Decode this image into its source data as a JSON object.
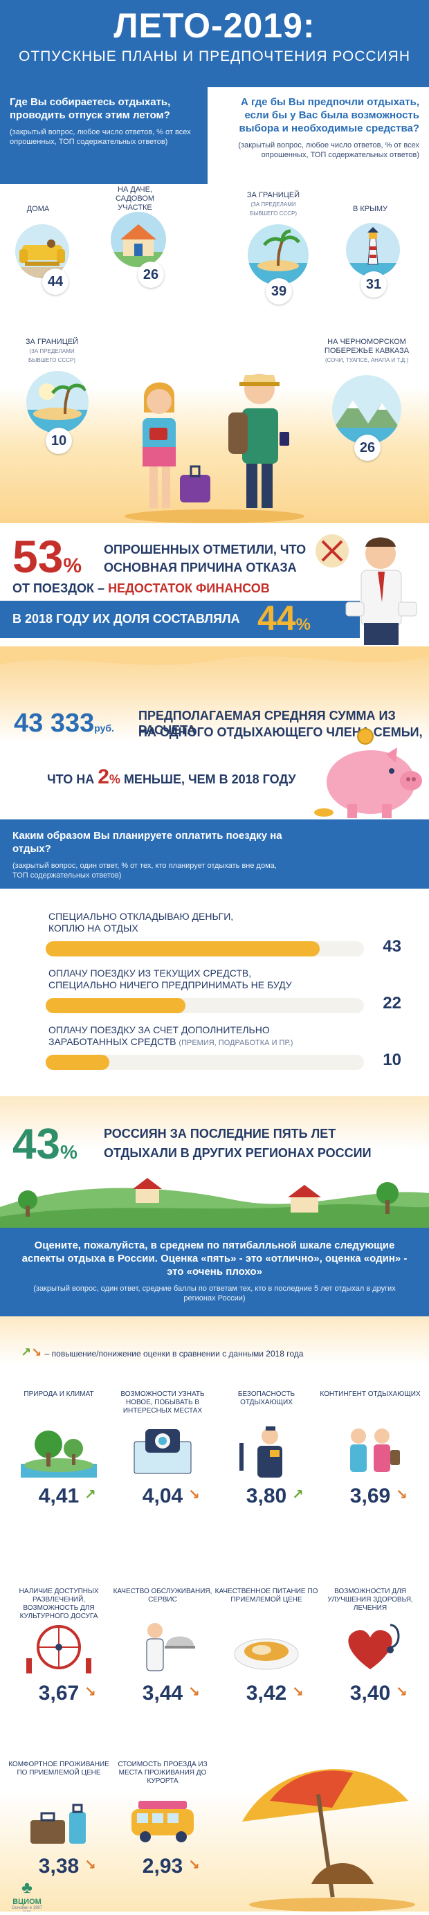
{
  "header": {
    "title": "ЛЕТО-2019:",
    "subtitle": "ОТПУСКНЫЕ ПЛАНЫ И ПРЕДПОЧТЕНИЯ РОССИЯН"
  },
  "q_plan": {
    "title": "Где Вы собираетесь отдыхать, проводить отпуск этим летом?",
    "note": "(закрытый вопрос, любое число ответов, % от всех опрошенных, ТОП содержательных ответов)"
  },
  "q_pref": {
    "title": "А где бы Вы предпочли отдыхать, если бы у Вас была возможность выбора и необходимые средства?",
    "note": "(закрытый вопрос, любое число ответов, % от всех опрошенных, ТОП содержательных ответов)"
  },
  "plan_items": [
    {
      "label": "ДОМА",
      "sub": "",
      "value": "44"
    },
    {
      "label": "НА ДАЧЕ, САДОВОМ УЧАСТКЕ",
      "sub": "",
      "value": "26"
    },
    {
      "label": "ЗА ГРАНИЦЕЙ",
      "sub": "(ЗА ПРЕДЕЛАМИ БЫВШЕГО СССР)",
      "value": "10"
    }
  ],
  "pref_items": [
    {
      "label": "ЗА ГРАНИЦЕЙ",
      "sub": "(ЗА ПРЕДЕЛАМИ БЫВШЕГО СССР)",
      "value": "39"
    },
    {
      "label": "В КРЫМУ",
      "sub": "",
      "value": "31"
    },
    {
      "label": "НА ЧЕРНОМОРСКОМ ПОБЕРЕЖЬЕ КАВКАЗА",
      "sub": "(СОЧИ, ТУАПСЕ, АНАПА И Т.Д.)",
      "value": "26"
    }
  ],
  "finance": {
    "pct": "53",
    "pct_sign": "%",
    "text1": "ОПРОШЕННЫХ ОТМЕТИЛИ, ЧТО",
    "text2": "ОСНОВНАЯ ПРИЧИНА ОТКАЗА",
    "text3a": "ОТ ПОЕЗДОК –",
    "text3b": "НЕДОСТАТОК ФИНАНСОВ",
    "text4": "В 2018 ГОДУ ИХ ДОЛЯ СОСТАВЛЯЛА",
    "pct2018": "44",
    "pct2018_sign": "%"
  },
  "money": {
    "amount": "43 333",
    "unit": "руб.",
    "text1": "ПРЕДПОЛАГАЕМАЯ СРЕДНЯЯ СУММА ИЗ РАСЧЕТА",
    "text2": "НА ОДНОГО ОТДЫХАЮЩЕГО ЧЛЕНА СЕМЬИ,",
    "text3a": "ЧТО НА",
    "pct": "2",
    "pct_sign": "%",
    "text3b": "МЕНЬШЕ, ЧЕМ В 2018 ГОДУ"
  },
  "q_pay": {
    "title": "Каким образом Вы планируете оплатить поездку на отдых?",
    "note": "(закрытый вопрос, один ответ, % от тех, кто планирует отдыхать вне дома, ТОП содержательных ответов)"
  },
  "pay_items": [
    {
      "label1": "СПЕЦИАЛЬНО ОТКЛАДЫВАЮ ДЕНЬГИ,",
      "label2": "КОПЛЮ НА ОТДЫХ",
      "label2_small": "",
      "value": 43
    },
    {
      "label1": "ОПЛАЧУ ПОЕЗДКУ ИЗ ТЕКУЩИХ СРЕДСТВ,",
      "label2": "СПЕЦИАЛЬНО НИЧЕГО ПРЕДПРИНИМАТЬ НЕ БУДУ",
      "label2_small": "",
      "value": 22
    },
    {
      "label1": "ОПЛАЧУ ПОЕЗДКУ ЗА СЧЕТ ДОПОЛНИТЕЛЬНО",
      "label2": "ЗАРАБОТАННЫХ СРЕДСТВ",
      "label2_small": "(ПРЕМИЯ, ПОДРАБОТКА И ПР.)",
      "value": 10
    }
  ],
  "regions": {
    "pct": "43",
    "pct_sign": "%",
    "text1": "РОССИЯН ЗА ПОСЛЕДНИЕ ПЯТЬ ЛЕТ",
    "text2": "ОТДЫХАЛИ В ДРУГИХ РЕГИОНАХ РОССИИ"
  },
  "q_rate": {
    "title": "Оцените, пожалуйста, в среднем по пятибалльной шкале следующие аспекты отдыха в России. Оценка «пять» - это «отлично», оценка «один» - это «очень плохо»",
    "note": "(закрытый вопрос, один ответ, средние баллы по ответам тех, кто в последние 5 лет отдыхал в других регионах России)"
  },
  "legend": {
    "text": "– повышение/понижение оценки в сравнении с данными 2018 года"
  },
  "ratings": [
    {
      "label": "ПРИРОДА И КЛИМАТ",
      "value": "4,41",
      "trend": "up"
    },
    {
      "label": "ВОЗМОЖНОСТИ УЗНАТЬ НОВОЕ, ПОБЫВАТЬ В ИНТЕРЕСНЫХ МЕСТАХ",
      "value": "4,04",
      "trend": "down"
    },
    {
      "label": "БЕЗОПАСНОСТЬ ОТДЫХАЮЩИХ",
      "value": "3,80",
      "trend": "up"
    },
    {
      "label": "КОНТИНГЕНТ ОТДЫХАЮЩИХ",
      "value": "3,69",
      "trend": "down"
    },
    {
      "label": "НАЛИЧИЕ ДОСТУПНЫХ РАЗВЛЕЧЕНИЙ, ВОЗМОЖНОСТЬ ДЛЯ КУЛЬТУРНОГО ДОСУГА",
      "value": "3,67",
      "trend": "down"
    },
    {
      "label": "КАЧЕСТВО ОБСЛУЖИВАНИЯ, СЕРВИС",
      "value": "3,44",
      "trend": "down"
    },
    {
      "label": "КАЧЕСТВЕННОЕ ПИТАНИЕ ПО ПРИЕМЛЕМОЙ ЦЕНЕ",
      "value": "3,42",
      "trend": "down"
    },
    {
      "label": "ВОЗМОЖНОСТИ ДЛЯ УЛУЧШЕНИЯ ЗДОРОВЬЯ, ЛЕЧЕНИЯ",
      "value": "3,40",
      "trend": "down"
    },
    {
      "label": "КОМФОРТНОЕ ПРОЖИВАНИЕ ПО ПРИЕМЛЕМОЙ ЦЕНЕ",
      "value": "3,38",
      "trend": "down"
    },
    {
      "label": "СТОИМОСТЬ ПРОЕЗДА ИЗ МЕСТА ПРОЖИВАНИЯ ДО КУРОРТА",
      "value": "2,93",
      "trend": "down"
    }
  ],
  "footer": {
    "logo": "ВЦИОМ",
    "logo_sub": "Основан в 1987 году"
  },
  "colors": {
    "blue": "#2a6db5",
    "navy": "#243a66",
    "red": "#c5302b",
    "orange": "#f3b431",
    "up": "#6aaa3a",
    "down": "#e0792b"
  }
}
